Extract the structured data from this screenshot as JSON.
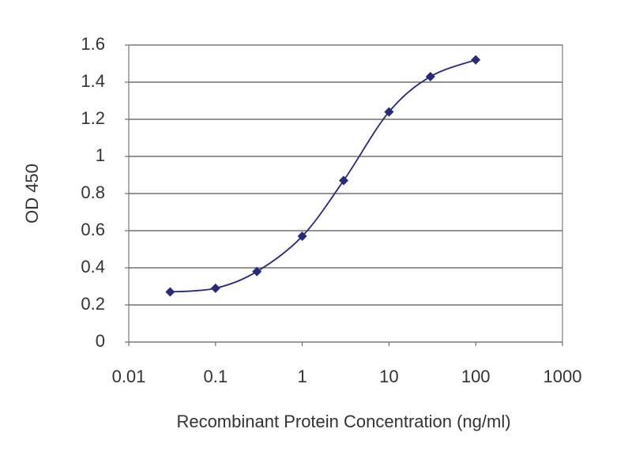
{
  "chart_data": {
    "type": "line",
    "x_label": "Recombinant Protein Concentration (ng/ml)",
    "y_label": "OD 450",
    "x": [
      0.03,
      0.1,
      0.3,
      1,
      3,
      10,
      30,
      100
    ],
    "series": [
      {
        "color": "#27297a",
        "values": [
          0.27,
          0.29,
          0.38,
          0.57,
          0.87,
          1.24,
          1.43,
          1.52
        ]
      }
    ],
    "x_log": true,
    "xlim": [
      0.01,
      1000
    ],
    "xticks": [
      0.01,
      0.1,
      1,
      10,
      100,
      1000
    ],
    "ylim": [
      0,
      1.6
    ],
    "yticks": [
      0,
      0.2,
      0.4,
      0.6,
      0.8,
      1,
      1.2,
      1.4,
      1.6
    ],
    "grid": true
  }
}
